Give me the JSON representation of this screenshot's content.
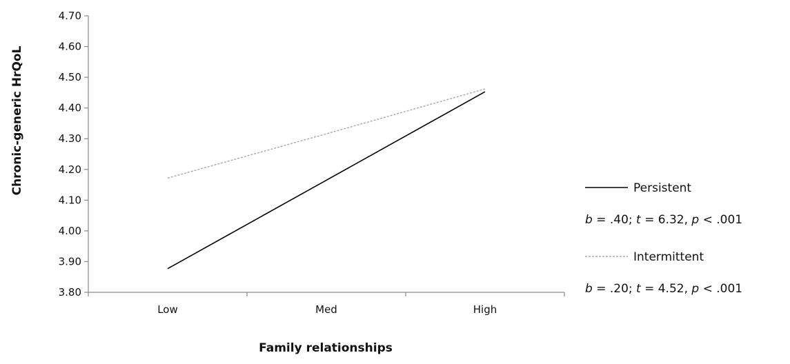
{
  "chart_data": {
    "type": "line",
    "xlabel": "Family relationships",
    "ylabel": "Chronic-generic HrQoL",
    "categories": [
      "Low",
      "Med",
      "High"
    ],
    "ylim": [
      3.8,
      4.7
    ],
    "yticks": [
      "3.80",
      "3.90",
      "4.00",
      "4.10",
      "4.20",
      "4.30",
      "4.40",
      "4.50",
      "4.60",
      "4.70"
    ],
    "grid": false,
    "legend_position": "right",
    "series": [
      {
        "name": "Persistent",
        "values": [
          3.877,
          4.165,
          4.453
        ],
        "color": "#000000",
        "dash": "solid",
        "stat": {
          "b_val": " = .40; ",
          "t_val": " = 6.32, ",
          "p_val": " < .001"
        }
      },
      {
        "name": "Intermittent",
        "values": [
          4.172,
          4.316,
          4.462
        ],
        "color": "#a8a8a8",
        "dash": "dashed",
        "stat": {
          "b_val": " = .20; ",
          "t_val": " = 4.52, ",
          "p_val": " < .001"
        }
      }
    ],
    "stat_symbols": {
      "b": "b",
      "t": "t",
      "p": "p"
    }
  }
}
